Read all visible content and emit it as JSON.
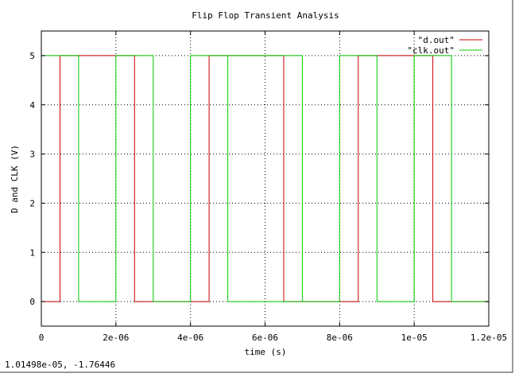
{
  "status": {
    "coords": "1.01498e-05, -1.76446"
  },
  "colors": {
    "d_out": "#cc0000",
    "clk_out": "#00cc00",
    "frame": "#000000",
    "grid": "#000000"
  },
  "chart_data": {
    "type": "line",
    "title": "Flip Flop Transient Analysis",
    "xlabel": "time (s)",
    "ylabel": "D and CLK (V)",
    "xlim": [
      0,
      1.2e-05
    ],
    "ylim": [
      -0.5,
      5.5
    ],
    "xticks": [
      0,
      2e-06,
      4e-06,
      6e-06,
      8e-06,
      1e-05,
      1.2e-05
    ],
    "xtick_labels": [
      "0",
      "2e-06",
      "4e-06",
      "6e-06",
      "8e-06",
      "1e-05",
      "1.2e-05"
    ],
    "yticks": [
      0,
      1,
      2,
      3,
      4,
      5
    ],
    "ytick_labels": [
      "0",
      "1",
      "2",
      "3",
      "4",
      "5"
    ],
    "grid": true,
    "legend_position": "top-right",
    "series": [
      {
        "name": "\"d.out\"",
        "points": [
          [
            0,
            0
          ],
          [
            5e-07,
            0
          ],
          [
            5e-07,
            5
          ],
          [
            2.5e-06,
            5
          ],
          [
            2.5e-06,
            0
          ],
          [
            4.5e-06,
            0
          ],
          [
            4.5e-06,
            5
          ],
          [
            6.5e-06,
            5
          ],
          [
            6.5e-06,
            1.2
          ],
          [
            6.5e-06,
            0
          ],
          [
            8.5e-06,
            0
          ],
          [
            8.5e-06,
            5
          ],
          [
            1.05e-05,
            5
          ],
          [
            1.05e-05,
            0
          ],
          [
            1.2e-05,
            0
          ]
        ]
      },
      {
        "name": "\"clk.out\"",
        "points": [
          [
            0,
            5
          ],
          [
            1e-06,
            5
          ],
          [
            1e-06,
            0
          ],
          [
            2e-06,
            0
          ],
          [
            2e-06,
            5
          ],
          [
            3e-06,
            5
          ],
          [
            3e-06,
            0
          ],
          [
            4e-06,
            0
          ],
          [
            4e-06,
            5
          ],
          [
            5e-06,
            5
          ],
          [
            5e-06,
            0
          ],
          [
            7e-06,
            0
          ],
          [
            7e-06,
            5
          ],
          [
            5e-06,
            5
          ],
          [
            5e-06,
            0
          ],
          [
            7e-06,
            0
          ],
          [
            8e-06,
            0
          ],
          [
            8e-06,
            3.75
          ],
          [
            8e-06,
            5
          ],
          [
            9e-06,
            5
          ],
          [
            9e-06,
            0
          ],
          [
            1e-05,
            0
          ],
          [
            1e-05,
            5
          ],
          [
            1.1e-05,
            5
          ],
          [
            1.1e-05,
            0
          ],
          [
            1.2e-05,
            0
          ]
        ]
      }
    ]
  }
}
